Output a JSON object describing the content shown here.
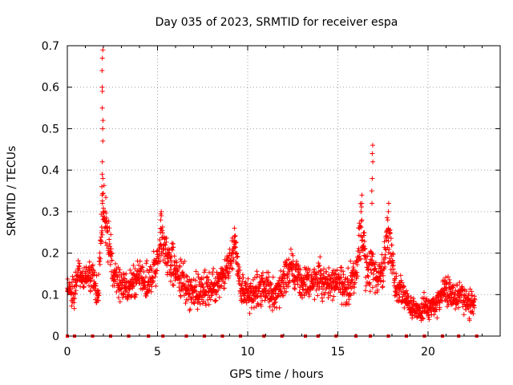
{
  "chart_data": {
    "type": "scatter",
    "title": "Day 035 of 2023, SRMTID for receiver espa",
    "xlabel": "GPS time / hours",
    "ylabel": "SRMTID / TECUs",
    "xlim": [
      0,
      24
    ],
    "ylim": [
      0,
      0.7
    ],
    "x_ticks": [
      0,
      5,
      10,
      15,
      20
    ],
    "x_tick_labels": [
      "0",
      "5",
      "10",
      "15",
      "20"
    ],
    "y_ticks": [
      0,
      0.1,
      0.2,
      0.3,
      0.4,
      0.5,
      0.6,
      0.7
    ],
    "y_tick_labels": [
      "0",
      "0.1",
      "0.2",
      "0.3",
      "0.4",
      "0.5",
      "0.6",
      "0.7"
    ],
    "grid": true,
    "marker": "+",
    "color": "#ff0000",
    "series_envelope": {
      "x": [
        0.0,
        0.3,
        0.6,
        1.0,
        1.4,
        1.7,
        1.95,
        2.2,
        2.5,
        3.0,
        3.5,
        4.0,
        4.5,
        5.0,
        5.2,
        5.5,
        6.0,
        6.5,
        7.0,
        7.5,
        8.0,
        8.5,
        9.0,
        9.3,
        9.6,
        10.0,
        10.5,
        11.0,
        11.5,
        12.0,
        12.4,
        13.0,
        13.5,
        14.0,
        14.5,
        15.0,
        15.5,
        16.0,
        16.3,
        16.6,
        16.9,
        17.2,
        17.5,
        17.8,
        18.2,
        18.6,
        19.0,
        19.5,
        20.0,
        20.5,
        21.0,
        21.5,
        21.8,
        22.2,
        22.6
      ],
      "y": [
        0.12,
        0.1,
        0.15,
        0.14,
        0.15,
        0.1,
        0.3,
        0.28,
        0.16,
        0.12,
        0.13,
        0.15,
        0.12,
        0.18,
        0.24,
        0.2,
        0.16,
        0.13,
        0.1,
        0.12,
        0.11,
        0.14,
        0.17,
        0.22,
        0.12,
        0.1,
        0.11,
        0.12,
        0.1,
        0.13,
        0.17,
        0.12,
        0.13,
        0.14,
        0.12,
        0.14,
        0.11,
        0.15,
        0.27,
        0.15,
        0.17,
        0.13,
        0.16,
        0.26,
        0.12,
        0.1,
        0.07,
        0.06,
        0.07,
        0.08,
        0.11,
        0.09,
        0.1,
        0.08,
        0.08
      ],
      "spread": [
        0.04,
        0.06,
        0.05,
        0.04,
        0.06,
        0.05,
        0.1,
        0.12,
        0.06,
        0.05,
        0.06,
        0.06,
        0.06,
        0.06,
        0.07,
        0.06,
        0.07,
        0.06,
        0.07,
        0.06,
        0.06,
        0.06,
        0.06,
        0.05,
        0.06,
        0.06,
        0.06,
        0.06,
        0.06,
        0.07,
        0.06,
        0.06,
        0.06,
        0.06,
        0.06,
        0.05,
        0.06,
        0.06,
        0.1,
        0.08,
        0.07,
        0.07,
        0.07,
        0.09,
        0.06,
        0.05,
        0.04,
        0.04,
        0.04,
        0.04,
        0.05,
        0.05,
        0.05,
        0.05,
        0.04
      ]
    },
    "peaks": [
      {
        "x": 1.95,
        "y": [
          0.69,
          0.67,
          0.64,
          0.6,
          0.59,
          0.55,
          0.52,
          0.5,
          0.47,
          0.42,
          0.39,
          0.38,
          0.36,
          0.34,
          0.32,
          0.3
        ]
      },
      {
        "x": 5.2,
        "y": [
          0.3,
          0.29,
          0.28,
          0.26
        ]
      },
      {
        "x": 9.3,
        "y": [
          0.26,
          0.24,
          0.23
        ]
      },
      {
        "x": 16.3,
        "y": [
          0.34,
          0.32,
          0.3,
          0.28
        ]
      },
      {
        "x": 16.9,
        "y": [
          0.46,
          0.44,
          0.42,
          0.38,
          0.35,
          0.32
        ]
      },
      {
        "x": 17.8,
        "y": [
          0.32,
          0.3,
          0.28,
          0.26
        ]
      }
    ],
    "baseline_marks_x": [
      0.0,
      0.4,
      1.4,
      2.4,
      3.4,
      4.5,
      5.3,
      6.6,
      7.6,
      8.6,
      9.6,
      10.9,
      11.9,
      13.2,
      13.9,
      14.9,
      16.0,
      16.8,
      17.8,
      18.8,
      19.8,
      20.8,
      21.7,
      22.7
    ]
  }
}
